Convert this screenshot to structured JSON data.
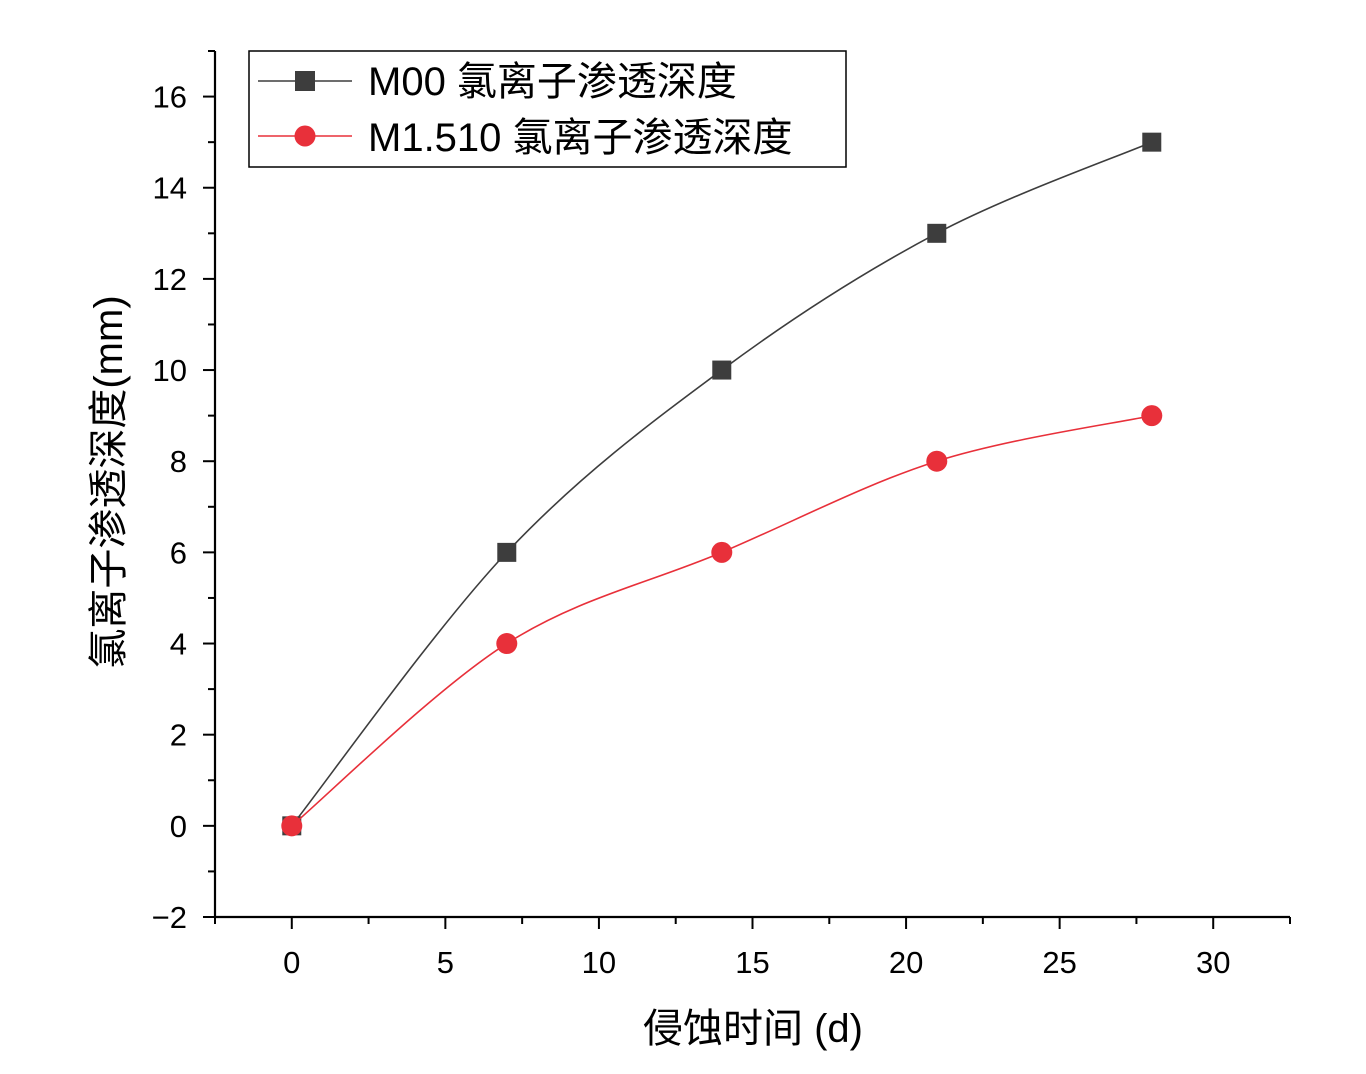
{
  "chart_data": {
    "type": "line",
    "title": "",
    "xlabel": "侵蚀时间 (d)",
    "ylabel": "氯离子渗透深度(mm)",
    "xlim": [
      -2.5,
      32.5
    ],
    "ylim": [
      -2,
      17
    ],
    "x_ticks": [
      0,
      5,
      10,
      15,
      20,
      25,
      30
    ],
    "x_minor_ticks": [
      -2.5,
      2.5,
      7.5,
      12.5,
      17.5,
      22.5,
      27.5,
      32.5
    ],
    "y_ticks": [
      -2,
      0,
      2,
      4,
      6,
      8,
      10,
      12,
      14,
      16
    ],
    "y_tick_labels": [
      "−2",
      "0",
      "2",
      "4",
      "6",
      "8",
      "10",
      "12",
      "14",
      "16"
    ],
    "y_minor_ticks": [
      -1,
      1,
      3,
      5,
      7,
      9,
      11,
      13,
      15,
      17
    ],
    "grid": false,
    "legend_position": "top-left",
    "x": [
      0,
      7,
      14,
      21,
      28
    ],
    "series": [
      {
        "name": "M00 氯离子渗透深度",
        "values": [
          0,
          6,
          10,
          13,
          15
        ],
        "color": "#3d3d3d",
        "marker": "square"
      },
      {
        "name": "M1.510 氯离子渗透深度",
        "values": [
          0,
          4,
          6,
          8,
          9
        ],
        "color": "#e8303a",
        "marker": "circle"
      }
    ]
  }
}
